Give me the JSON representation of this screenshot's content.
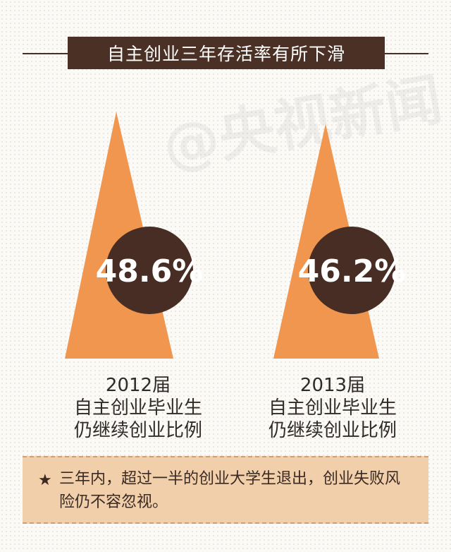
{
  "header": {
    "title": "自主创业三年存活率有所下滑"
  },
  "watermark": {
    "text": "@央视新闻"
  },
  "chart_data": {
    "type": "bar",
    "title": "自主创业三年存活率有所下滑",
    "unit": "%",
    "categories": [
      "2012届",
      "2013届"
    ],
    "values": [
      48.6,
      46.2
    ],
    "value_labels": [
      "48.6%",
      "46.2%"
    ],
    "descriptions": [
      [
        "自主创业毕业生",
        "仍继续创业比例"
      ],
      [
        "自主创业毕业生",
        "仍继续创业比例"
      ]
    ]
  },
  "colors": {
    "triangle": "#f0964f",
    "circle": "#472d24",
    "header_bg": "#4b3125",
    "note_bg": "#f1cfab"
  },
  "note": {
    "icon": "star-icon",
    "text": "三年内，超过一半的创业大学生退出，创业失败风险仍不容忽视。"
  }
}
